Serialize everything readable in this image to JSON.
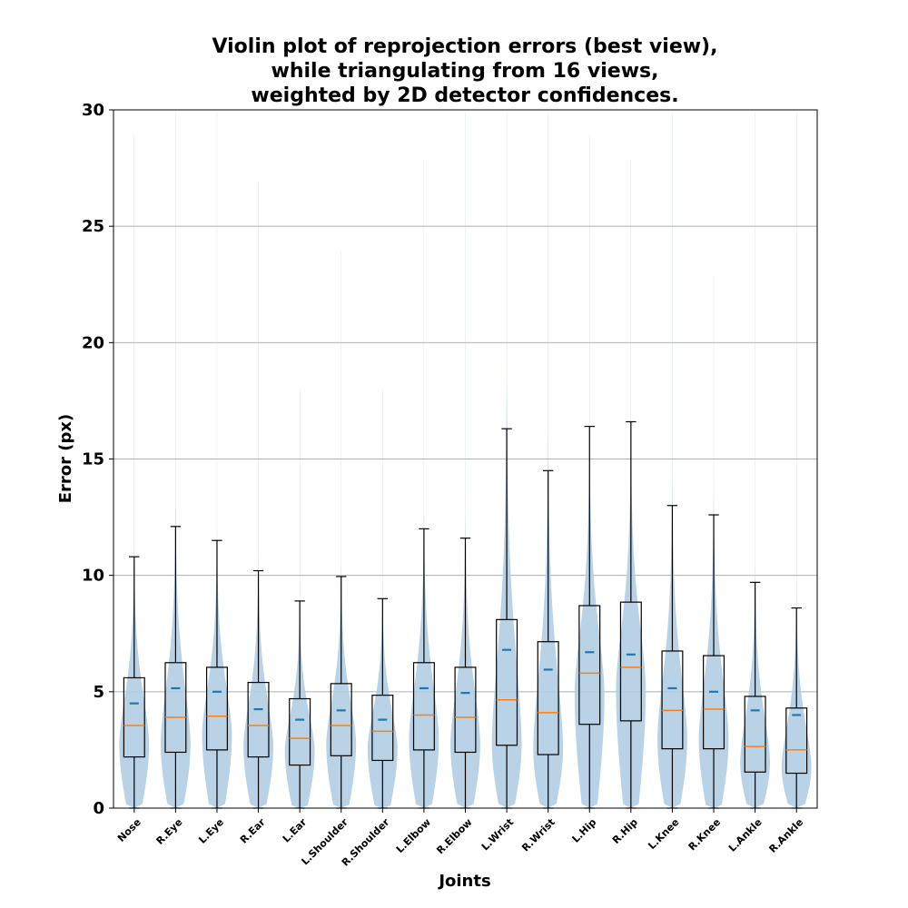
{
  "chart_data": {
    "type": "violin",
    "title": [
      "Violin plot of reprojection errors (best view),",
      "while triangulating from 16 views,",
      "weighted by 2D detector confidences."
    ],
    "xlabel": "Joints",
    "ylabel": "Error (px)",
    "ylim": [
      0,
      30
    ],
    "yticks": [
      0,
      5,
      10,
      15,
      20,
      25,
      30
    ],
    "grid": "horizontal",
    "colors": {
      "violin": "#b3cde3",
      "mean": "#1f77b4",
      "median": "#ff7f0e",
      "box": "#000000",
      "grid": "#b0b0b0"
    },
    "categories": [
      "Nose",
      "R.Eye",
      "L.Eye",
      "R.Ear",
      "L.Ear",
      "L.Shoulder",
      "R.Shoulder",
      "L.Elbow",
      "R.Elbow",
      "L.Wrist",
      "R.Wrist",
      "L.Hip",
      "R.Hip",
      "L.Knee",
      "R.Knee",
      "L.Ankle",
      "R.Ankle"
    ],
    "series": [
      {
        "min": 0,
        "q1": 2.2,
        "median": 3.55,
        "mean": 4.5,
        "q3": 5.6,
        "whisker_high": 10.8,
        "max": 29,
        "mode": 2.8
      },
      {
        "min": 0,
        "q1": 2.4,
        "median": 3.9,
        "mean": 5.15,
        "q3": 6.25,
        "whisker_high": 12.1,
        "max": 30,
        "mode": 2.8
      },
      {
        "min": 0,
        "q1": 2.5,
        "median": 3.95,
        "mean": 5.0,
        "q3": 6.05,
        "whisker_high": 11.5,
        "max": 30,
        "mode": 3.2
      },
      {
        "min": 0,
        "q1": 2.2,
        "median": 3.55,
        "mean": 4.25,
        "q3": 5.4,
        "whisker_high": 10.2,
        "max": 27,
        "mode": 2.7
      },
      {
        "min": 0,
        "q1": 1.85,
        "median": 3.0,
        "mean": 3.8,
        "q3": 4.7,
        "whisker_high": 8.9,
        "max": 18,
        "mode": 2.5
      },
      {
        "min": 0,
        "q1": 2.25,
        "median": 3.55,
        "mean": 4.2,
        "q3": 5.35,
        "whisker_high": 9.95,
        "max": 24,
        "mode": 2.8
      },
      {
        "min": 0,
        "q1": 2.05,
        "median": 3.3,
        "mean": 3.8,
        "q3": 4.85,
        "whisker_high": 9.0,
        "max": 18,
        "mode": 2.6
      },
      {
        "min": 0,
        "q1": 2.5,
        "median": 4.0,
        "mean": 5.15,
        "q3": 6.25,
        "whisker_high": 12.0,
        "max": 28,
        "mode": 3.0
      },
      {
        "min": 0,
        "q1": 2.4,
        "median": 3.9,
        "mean": 4.95,
        "q3": 6.05,
        "whisker_high": 11.6,
        "max": 30,
        "mode": 2.8
      },
      {
        "min": 0,
        "q1": 2.7,
        "median": 4.65,
        "mean": 6.8,
        "q3": 8.1,
        "whisker_high": 16.3,
        "max": 30,
        "mode": 2.8
      },
      {
        "min": 0,
        "q1": 2.3,
        "median": 4.1,
        "mean": 5.95,
        "q3": 7.15,
        "whisker_high": 14.5,
        "max": 30,
        "mode": 2.6
      },
      {
        "min": 0,
        "q1": 3.6,
        "median": 5.8,
        "mean": 6.7,
        "q3": 8.7,
        "whisker_high": 16.4,
        "max": 29,
        "mode": 5.0
      },
      {
        "min": 0,
        "q1": 3.75,
        "median": 6.05,
        "mean": 6.6,
        "q3": 8.85,
        "whisker_high": 16.6,
        "max": 28,
        "mode": 5.2
      },
      {
        "min": 0,
        "q1": 2.55,
        "median": 4.2,
        "mean": 5.15,
        "q3": 6.75,
        "whisker_high": 13.0,
        "max": 30,
        "mode": 3.0
      },
      {
        "min": 0,
        "q1": 2.55,
        "median": 4.25,
        "mean": 5.0,
        "q3": 6.55,
        "whisker_high": 12.6,
        "max": 23,
        "mode": 3.0
      },
      {
        "min": 0,
        "q1": 1.55,
        "median": 2.65,
        "mean": 4.2,
        "q3": 4.8,
        "whisker_high": 9.7,
        "max": 30,
        "mode": 2.0
      },
      {
        "min": 0,
        "q1": 1.5,
        "median": 2.5,
        "mean": 4.0,
        "q3": 4.3,
        "whisker_high": 8.6,
        "max": 30,
        "mode": 1.8
      }
    ]
  }
}
